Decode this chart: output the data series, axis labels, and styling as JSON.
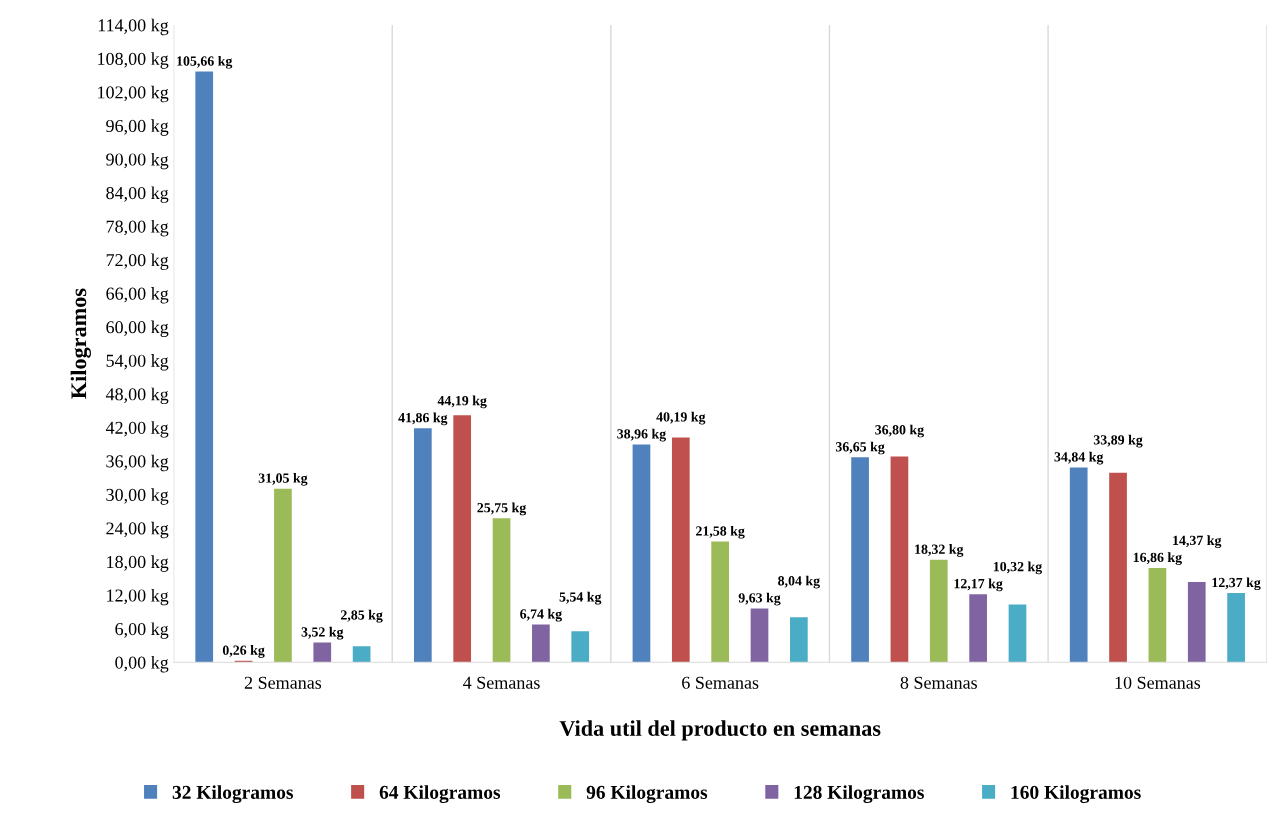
{
  "chart_data": {
    "type": "bar",
    "xlabel": "Vida util del producto en semanas",
    "ylabel": "Kilogramos",
    "categories": [
      "2 Semanas",
      "4 Semanas",
      "6 Semanas",
      "8 Semanas",
      "10 Semanas"
    ],
    "series": [
      {
        "name": "32 Kilogramos",
        "color": "#4f81bd",
        "values": [
          105.66,
          41.86,
          38.96,
          36.65,
          34.84
        ],
        "value_labels": [
          "105,66 kg",
          "41,86 kg",
          "38,96 kg",
          "36,65 kg",
          "34,84 kg"
        ]
      },
      {
        "name": "64 Kilogramos",
        "color": "#c0504d",
        "values": [
          0.26,
          44.19,
          40.19,
          36.8,
          33.89
        ],
        "value_labels": [
          "0,26 kg",
          "44,19 kg",
          "40,19 kg",
          "36,80 kg",
          "33,89 kg"
        ]
      },
      {
        "name": "96 Kilogramos",
        "color": "#9bbb59",
        "values": [
          31.05,
          25.75,
          21.58,
          18.32,
          16.86
        ],
        "value_labels": [
          "31,05 kg",
          "25,75 kg",
          "21,58 kg",
          "18,32 kg",
          "16,86 kg"
        ]
      },
      {
        "name": "128 Kilogramos",
        "color": "#8064a2",
        "values": [
          3.52,
          6.74,
          9.63,
          12.17,
          14.37
        ],
        "value_labels": [
          "3,52 kg",
          "6,74 kg",
          "9,63 kg",
          "12,17 kg",
          "14,37 kg"
        ]
      },
      {
        "name": "160 Kilogramos",
        "color": "#4bacc6",
        "values": [
          2.85,
          5.54,
          8.04,
          10.32,
          12.37
        ],
        "value_labels": [
          "2,85 kg",
          "5,54 kg",
          "8,04 kg",
          "10,32 kg",
          "12,37 kg"
        ]
      }
    ],
    "ylim": [
      0,
      114
    ],
    "yticks": [
      {
        "value": 0,
        "label": "0,00 kg"
      },
      {
        "value": 6,
        "label": "6,00 kg"
      },
      {
        "value": 12,
        "label": "12,00 kg"
      },
      {
        "value": 18,
        "label": "18,00 kg"
      },
      {
        "value": 24,
        "label": "24,00 kg"
      },
      {
        "value": 30,
        "label": "30,00 kg"
      },
      {
        "value": 36,
        "label": "36,00 kg"
      },
      {
        "value": 42,
        "label": "42,00 kg"
      },
      {
        "value": 48,
        "label": "48,00 kg"
      },
      {
        "value": 54,
        "label": "54,00 kg"
      },
      {
        "value": 60,
        "label": "60,00 kg"
      },
      {
        "value": 66,
        "label": "66,00 kg"
      },
      {
        "value": 72,
        "label": "72,00 kg"
      },
      {
        "value": 78,
        "label": "78,00 kg"
      },
      {
        "value": 84,
        "label": "84,00 kg"
      },
      {
        "value": 90,
        "label": "90,00 kg"
      },
      {
        "value": 96,
        "label": "96,00 kg"
      },
      {
        "value": 102,
        "label": "102,00 kg"
      },
      {
        "value": 108,
        "label": "108,00 kg"
      },
      {
        "value": 114,
        "label": "114,00 kg"
      }
    ],
    "grid": "x",
    "legend": "bottom"
  }
}
